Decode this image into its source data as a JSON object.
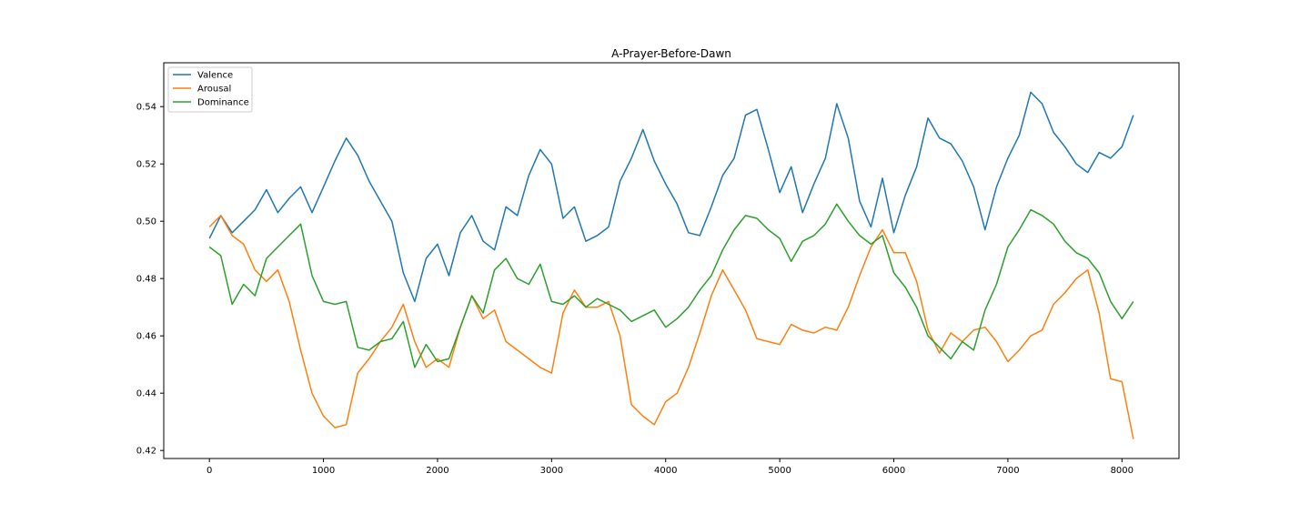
{
  "chart_data": {
    "type": "line",
    "title": "A-Prayer-Before-Dawn",
    "xlabel": "",
    "ylabel": "",
    "xlim": [
      -400,
      8500
    ],
    "ylim": [
      0.4172,
      0.5553
    ],
    "xticks": [
      0,
      1000,
      2000,
      3000,
      4000,
      5000,
      6000,
      7000,
      8000
    ],
    "xtick_labels": [
      "0",
      "1000",
      "2000",
      "3000",
      "4000",
      "5000",
      "6000",
      "7000",
      "8000"
    ],
    "yticks": [
      0.42,
      0.44,
      0.46,
      0.48,
      0.5,
      0.52,
      0.54
    ],
    "ytick_labels": [
      "0.42",
      "0.44",
      "0.46",
      "0.48",
      "0.50",
      "0.52",
      "0.54"
    ],
    "grid": false,
    "legend_position": "top-left",
    "series": [
      {
        "name": "Valence",
        "color": "#1f77b4",
        "x": [
          0,
          100,
          200,
          300,
          400,
          500,
          600,
          700,
          800,
          900,
          1000,
          1100,
          1200,
          1300,
          1400,
          1500,
          1600,
          1700,
          1800,
          1900,
          2000,
          2100,
          2200,
          2300,
          2400,
          2500,
          2600,
          2700,
          2800,
          2900,
          3000,
          3100,
          3200,
          3300,
          3400,
          3500,
          3600,
          3700,
          3800,
          3900,
          4000,
          4100,
          4200,
          4300,
          4400,
          4500,
          4600,
          4700,
          4800,
          4900,
          5000,
          5100,
          5200,
          5300,
          5400,
          5500,
          5600,
          5700,
          5800,
          5900,
          6000,
          6100,
          6200,
          6300,
          6400,
          6500,
          6600,
          6700,
          6800,
          6900,
          7000,
          7100,
          7200,
          7300,
          7400,
          7500,
          7600,
          7700,
          7800,
          7900,
          8000,
          8100
        ],
        "y": [
          0.494,
          0.502,
          0.496,
          0.5,
          0.504,
          0.511,
          0.503,
          0.508,
          0.512,
          0.503,
          0.512,
          0.521,
          0.529,
          0.523,
          0.514,
          0.507,
          0.5,
          0.482,
          0.472,
          0.487,
          0.492,
          0.481,
          0.496,
          0.502,
          0.493,
          0.49,
          0.505,
          0.502,
          0.516,
          0.525,
          0.52,
          0.501,
          0.505,
          0.493,
          0.495,
          0.498,
          0.514,
          0.522,
          0.532,
          0.521,
          0.513,
          0.506,
          0.496,
          0.495,
          0.505,
          0.516,
          0.522,
          0.537,
          0.539,
          0.525,
          0.51,
          0.519,
          0.503,
          0.513,
          0.522,
          0.541,
          0.529,
          0.507,
          0.498,
          0.515,
          0.496,
          0.509,
          0.519,
          0.536,
          0.529,
          0.527,
          0.521,
          0.512,
          0.497,
          0.512,
          0.522,
          0.53,
          0.545,
          0.541,
          0.531,
          0.526,
          0.52,
          0.517,
          0.524,
          0.522,
          0.526,
          0.537
        ]
      },
      {
        "name": "Arousal",
        "color": "#ff7f0e",
        "x": [
          0,
          100,
          200,
          300,
          400,
          500,
          600,
          700,
          800,
          900,
          1000,
          1100,
          1200,
          1300,
          1400,
          1500,
          1600,
          1700,
          1800,
          1900,
          2000,
          2100,
          2200,
          2300,
          2400,
          2500,
          2600,
          2700,
          2800,
          2900,
          3000,
          3100,
          3200,
          3300,
          3400,
          3500,
          3600,
          3700,
          3800,
          3900,
          4000,
          4100,
          4200,
          4300,
          4400,
          4500,
          4600,
          4700,
          4800,
          4900,
          5000,
          5100,
          5200,
          5300,
          5400,
          5500,
          5600,
          5700,
          5800,
          5900,
          6000,
          6100,
          6200,
          6300,
          6400,
          6500,
          6600,
          6700,
          6800,
          6900,
          7000,
          7100,
          7200,
          7300,
          7400,
          7500,
          7600,
          7700,
          7800,
          7900,
          8000,
          8100
        ],
        "y": [
          0.498,
          0.502,
          0.495,
          0.492,
          0.483,
          0.479,
          0.483,
          0.472,
          0.455,
          0.44,
          0.432,
          0.428,
          0.429,
          0.447,
          0.452,
          0.458,
          0.463,
          0.471,
          0.458,
          0.449,
          0.452,
          0.449,
          0.463,
          0.474,
          0.466,
          0.469,
          0.458,
          0.455,
          0.452,
          0.449,
          0.447,
          0.468,
          0.476,
          0.47,
          0.47,
          0.472,
          0.46,
          0.436,
          0.432,
          0.429,
          0.437,
          0.44,
          0.449,
          0.461,
          0.474,
          0.483,
          0.476,
          0.469,
          0.459,
          0.458,
          0.457,
          0.464,
          0.462,
          0.461,
          0.463,
          0.462,
          0.47,
          0.481,
          0.491,
          0.497,
          0.489,
          0.489,
          0.479,
          0.462,
          0.454,
          0.461,
          0.458,
          0.462,
          0.463,
          0.458,
          0.451,
          0.455,
          0.46,
          0.462,
          0.471,
          0.475,
          0.48,
          0.483,
          0.468,
          0.445,
          0.444,
          0.424
        ]
      },
      {
        "name": "Dominance",
        "color": "#2ca02c",
        "x": [
          0,
          100,
          200,
          300,
          400,
          500,
          600,
          700,
          800,
          900,
          1000,
          1100,
          1200,
          1300,
          1400,
          1500,
          1600,
          1700,
          1800,
          1900,
          2000,
          2100,
          2200,
          2300,
          2400,
          2500,
          2600,
          2700,
          2800,
          2900,
          3000,
          3100,
          3200,
          3300,
          3400,
          3500,
          3600,
          3700,
          3800,
          3900,
          4000,
          4100,
          4200,
          4300,
          4400,
          4500,
          4600,
          4700,
          4800,
          4900,
          5000,
          5100,
          5200,
          5300,
          5400,
          5500,
          5600,
          5700,
          5800,
          5900,
          6000,
          6100,
          6200,
          6300,
          6400,
          6500,
          6600,
          6700,
          6800,
          6900,
          7000,
          7100,
          7200,
          7300,
          7400,
          7500,
          7600,
          7700,
          7800,
          7900,
          8000,
          8100
        ],
        "y": [
          0.491,
          0.488,
          0.471,
          0.478,
          0.474,
          0.487,
          0.491,
          0.495,
          0.499,
          0.481,
          0.472,
          0.471,
          0.472,
          0.456,
          0.455,
          0.458,
          0.459,
          0.465,
          0.449,
          0.457,
          0.451,
          0.452,
          0.463,
          0.474,
          0.468,
          0.483,
          0.487,
          0.48,
          0.478,
          0.485,
          0.472,
          0.471,
          0.474,
          0.47,
          0.473,
          0.471,
          0.469,
          0.465,
          0.467,
          0.469,
          0.463,
          0.466,
          0.47,
          0.476,
          0.481,
          0.49,
          0.497,
          0.502,
          0.501,
          0.497,
          0.494,
          0.486,
          0.493,
          0.495,
          0.499,
          0.506,
          0.5,
          0.495,
          0.492,
          0.495,
          0.482,
          0.477,
          0.47,
          0.46,
          0.456,
          0.452,
          0.458,
          0.455,
          0.469,
          0.478,
          0.491,
          0.497,
          0.504,
          0.502,
          0.499,
          0.493,
          0.489,
          0.487,
          0.482,
          0.472,
          0.466,
          0.472
        ]
      }
    ]
  }
}
